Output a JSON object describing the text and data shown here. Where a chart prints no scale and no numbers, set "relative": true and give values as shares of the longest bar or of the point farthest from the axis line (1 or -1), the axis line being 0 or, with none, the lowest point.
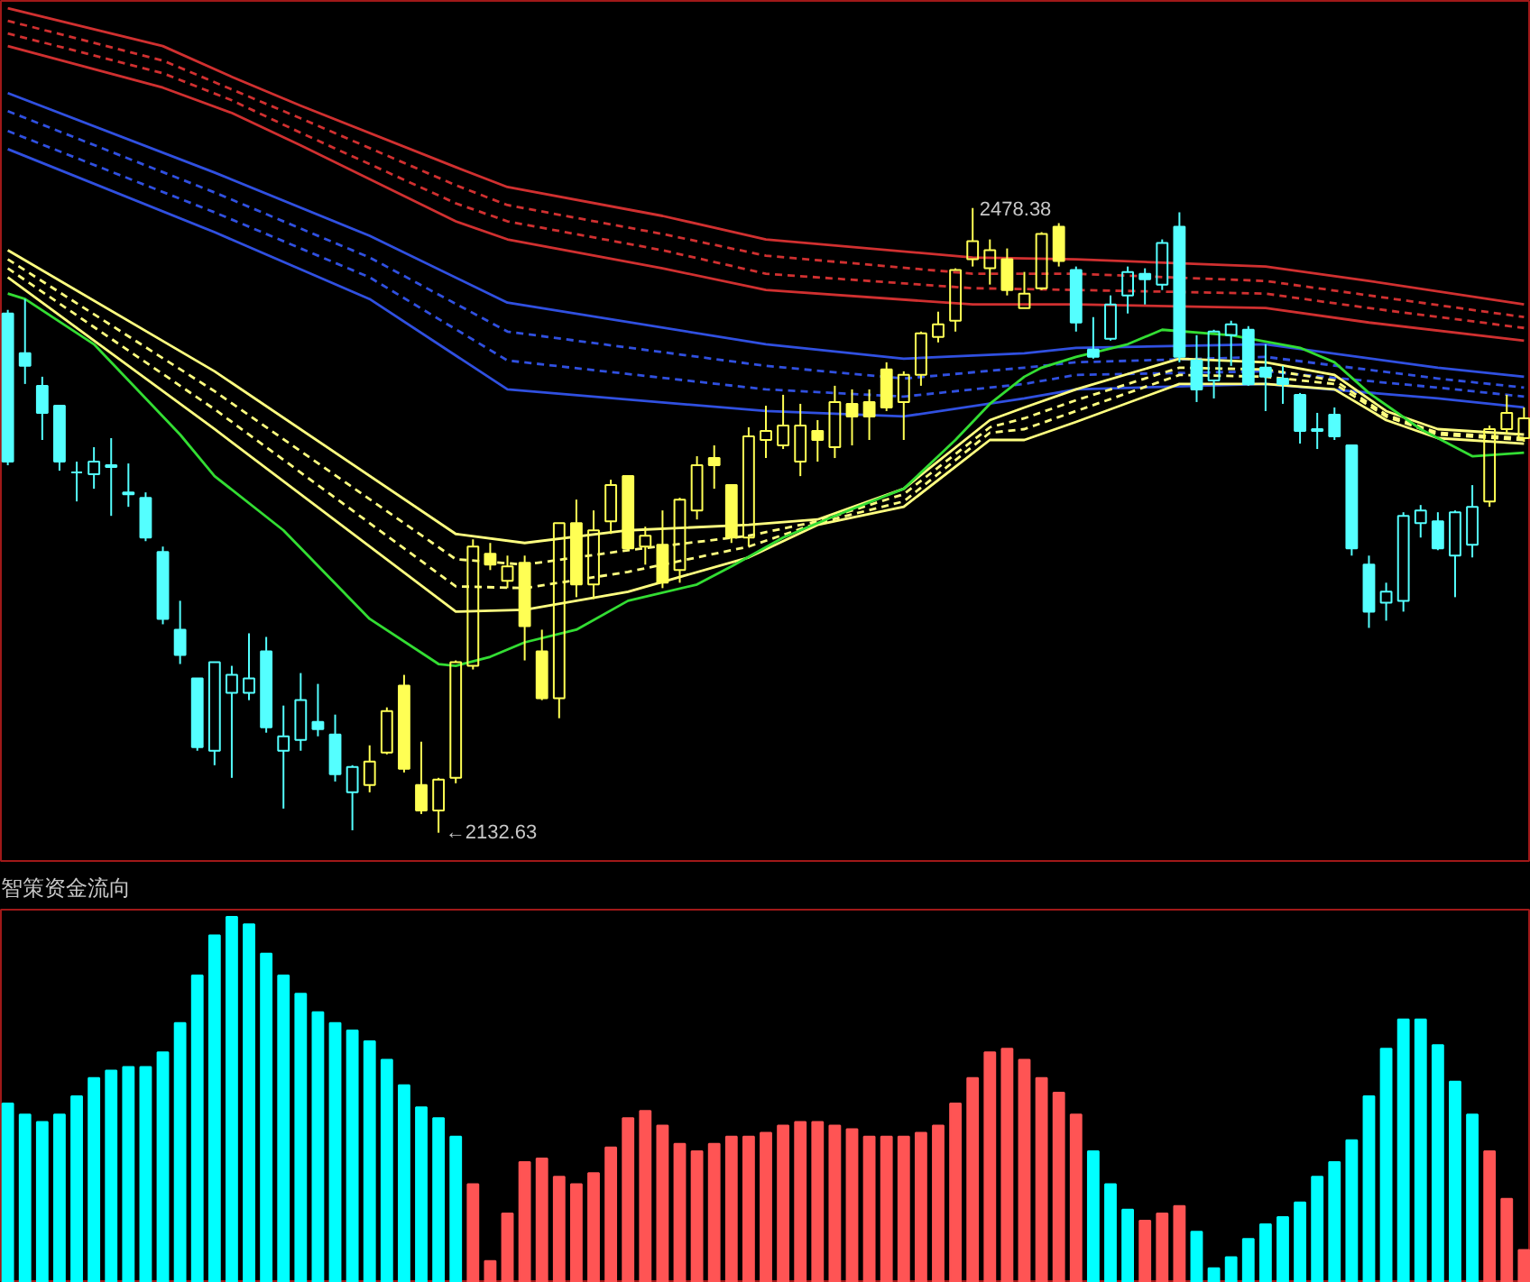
{
  "chart_data": [
    {
      "type": "candlestick",
      "categories": [
        null,
        null,
        null,
        null,
        null,
        null,
        null,
        null,
        null,
        null,
        null,
        null,
        null,
        null,
        null,
        null,
        null,
        null,
        null,
        null,
        null,
        null,
        null,
        null,
        null,
        null,
        null,
        null,
        null,
        null,
        null,
        null,
        null,
        null,
        null,
        null,
        null,
        null,
        null,
        null,
        null,
        null,
        null,
        null,
        null,
        null,
        null,
        null,
        null,
        null,
        null,
        null,
        null,
        null,
        null,
        null,
        null,
        null,
        null,
        null,
        null,
        null,
        null,
        null,
        null,
        null,
        null,
        null,
        null,
        null,
        null,
        null,
        null,
        null,
        null,
        null,
        null,
        null,
        null,
        null,
        null,
        null,
        null,
        null,
        null,
        null,
        null,
        null,
        null
      ],
      "ohlc": [
        [
          2420,
          2422,
          2336,
          2338
        ],
        [
          2398,
          2428,
          2381,
          2391
        ],
        [
          2380,
          2385,
          2350,
          2365
        ],
        [
          2369,
          2369,
          2333,
          2338
        ],
        [
          2332,
          2338,
          2316,
          2332
        ],
        [
          2331,
          2346,
          2323,
          2338
        ],
        [
          2336,
          2351,
          2308,
          2335
        ],
        [
          2321,
          2337,
          2313,
          2320
        ],
        [
          2318,
          2321,
          2294,
          2296
        ],
        [
          2288,
          2291,
          2248,
          2251
        ],
        [
          2245,
          2261,
          2226,
          2231
        ],
        [
          2218,
          2218,
          2178,
          2180
        ],
        [
          2178,
          2227,
          2170,
          2227
        ],
        [
          2210,
          2225,
          2163,
          2220
        ],
        [
          2210,
          2243,
          2206,
          2218
        ],
        [
          2233,
          2241,
          2188,
          2191
        ],
        [
          2178,
          2203,
          2146,
          2186
        ],
        [
          2184,
          2221,
          2178,
          2206
        ],
        [
          2194,
          2215,
          2186,
          2190
        ],
        [
          2187,
          2198,
          2161,
          2165
        ],
        [
          2155,
          2170,
          2134,
          2169
        ],
        [
          2159,
          2181,
          2155,
          2172
        ],
        [
          2177,
          2202,
          2176,
          2200
        ],
        [
          2214,
          2220,
          2166,
          2168
        ],
        [
          2159,
          2183,
          2143,
          2145
        ],
        [
          2145,
          2163,
          2132.63,
          2162
        ],
        [
          2163,
          2228,
          2160,
          2227
        ],
        [
          2225,
          2295,
          2223,
          2291
        ],
        [
          2287,
          2293,
          2278,
          2281
        ],
        [
          2272,
          2286,
          2268,
          2280
        ],
        [
          2282,
          2286,
          2228,
          2247
        ],
        [
          2233,
          2245,
          2206,
          2207
        ],
        [
          2207,
          2304,
          2196,
          2304
        ],
        [
          2304,
          2317,
          2263,
          2270
        ],
        [
          2270,
          2311,
          2262,
          2300
        ],
        [
          2305,
          2328,
          2298,
          2325
        ],
        [
          2330,
          2330,
          2289,
          2290
        ],
        [
          2291,
          2302,
          2281,
          2297
        ],
        [
          2292,
          2311,
          2268,
          2271
        ],
        [
          2278,
          2318,
          2271,
          2317
        ],
        [
          2311,
          2341,
          2306,
          2336
        ],
        [
          2340,
          2347,
          2323,
          2336
        ],
        [
          2325,
          2325,
          2293,
          2296
        ],
        [
          2296,
          2357,
          2291,
          2352
        ],
        [
          2350,
          2369,
          2340,
          2355
        ],
        [
          2347,
          2375,
          2345,
          2358
        ],
        [
          2338,
          2370,
          2330,
          2358
        ],
        [
          2355,
          2361,
          2338,
          2350
        ],
        [
          2346,
          2380,
          2340,
          2371
        ],
        [
          2370,
          2378,
          2347,
          2363
        ],
        [
          2371,
          2378,
          2350,
          2363
        ],
        [
          2389,
          2393,
          2366,
          2368
        ],
        [
          2371,
          2388,
          2350,
          2386
        ],
        [
          2386,
          2410,
          2380,
          2409
        ],
        [
          2407,
          2421,
          2404,
          2414
        ],
        [
          2416,
          2445,
          2410,
          2444
        ],
        [
          2450,
          2478.38,
          2446,
          2460
        ],
        [
          2445,
          2461,
          2436,
          2455
        ],
        [
          2450,
          2456,
          2430,
          2433
        ],
        [
          2423,
          2443,
          2423,
          2431
        ],
        [
          2434,
          2465,
          2433,
          2464
        ],
        [
          2468,
          2470,
          2446,
          2449
        ],
        [
          2444,
          2446,
          2410,
          2415
        ],
        [
          2400,
          2418,
          2395,
          2396
        ],
        [
          2406,
          2430,
          2405,
          2425
        ],
        [
          2430,
          2446,
          2420,
          2443
        ],
        [
          2442,
          2445,
          2425,
          2439
        ],
        [
          2436,
          2461,
          2433,
          2459
        ],
        [
          2468,
          2476,
          2393,
          2396
        ],
        [
          2394,
          2408,
          2371,
          2378
        ],
        [
          2383,
          2411,
          2373,
          2410
        ],
        [
          2408,
          2416,
          2391,
          2414
        ],
        [
          2411,
          2413,
          2380,
          2381
        ],
        [
          2390,
          2403,
          2366,
          2385
        ],
        [
          2384,
          2391,
          2370,
          2381
        ],
        [
          2375,
          2376,
          2348,
          2355
        ],
        [
          2356,
          2365,
          2345,
          2355
        ],
        [
          2364,
          2368,
          2350,
          2352
        ],
        [
          2347,
          2347,
          2286,
          2290
        ],
        [
          2281,
          2286,
          2246,
          2255
        ],
        [
          2260,
          2271,
          2250,
          2266
        ],
        [
          2261,
          2310,
          2255,
          2308
        ],
        [
          2304,
          2314,
          2296,
          2311
        ],
        [
          2305,
          2310,
          2289,
          2290
        ],
        [
          2286,
          2311,
          2263,
          2310
        ],
        [
          2292,
          2325,
          2285,
          2313
        ],
        [
          2316,
          2358,
          2313,
          2356
        ],
        [
          2356,
          2375,
          2353,
          2365
        ],
        [
          2351,
          2368,
          2349,
          2362
        ]
      ],
      "colors": [
        "#54ffff",
        "#54ffff",
        "#54ffff",
        "#54ffff",
        "#54ffff",
        "#54ffff",
        "#54ffff",
        "#54ffff",
        "#54ffff",
        "#54ffff",
        "#54ffff",
        "#54ffff",
        "#54ffff",
        "#54ffff",
        "#54ffff",
        "#54ffff",
        "#54ffff",
        "#54ffff",
        "#54ffff",
        "#54ffff",
        "#54ffff",
        "#ffff54",
        "#ffff54",
        "#ffff54",
        "#ffff54",
        "#ffff54",
        "#ffff54",
        "#ffff54",
        "#ffff54",
        "#ffff54",
        "#ffff54",
        "#ffff54",
        "#ffff54",
        "#ffff54",
        "#ffff54",
        "#ffff54",
        "#ffff54",
        "#ffff54",
        "#ffff54",
        "#ffff54",
        "#ffff54",
        "#ffff54",
        "#ffff54",
        "#ffff54",
        "#ffff54",
        "#ffff54",
        "#ffff54",
        "#ffff54",
        "#ffff54",
        "#ffff54",
        "#ffff54",
        "#ffff54",
        "#ffff54",
        "#ffff54",
        "#ffff54",
        "#ffff54",
        "#ffff54",
        "#ffff54",
        "#ffff54",
        "#ffff54",
        "#ffff54",
        "#ffff54",
        "#54ffff",
        "#54ffff",
        "#54ffff",
        "#54ffff",
        "#54ffff",
        "#54ffff",
        "#54ffff",
        "#54ffff",
        "#54ffff",
        "#54ffff",
        "#54ffff",
        "#54ffff",
        "#54ffff",
        "#54ffff",
        "#54ffff",
        "#54ffff",
        "#54ffff",
        "#54ffff",
        "#54ffff",
        "#54ffff",
        "#54ffff",
        "#54ffff",
        "#54ffff",
        "#54ffff",
        "#ffff54",
        "#ffff54",
        "#ffff54"
      ],
      "series": [
        {
          "type": "line",
          "color": "#d03030",
          "line_style": "solid",
          "values": [
            2589,
            null,
            null,
            null,
            null,
            null,
            null,
            null,
            null,
            2568,
            null,
            null,
            null,
            2551,
            null,
            null,
            null,
            2535,
            null,
            null,
            null,
            null,
            null,
            null,
            null,
            null,
            2501,
            null,
            null,
            2490,
            null,
            null,
            null,
            null,
            null,
            null,
            null,
            null,
            2474,
            null,
            null,
            null,
            null,
            null,
            2461,
            null,
            null,
            null,
            null,
            null,
            null,
            null,
            null,
            null,
            null,
            null,
            2451,
            null,
            null,
            null,
            null,
            null,
            2450,
            null,
            null,
            null,
            null,
            null,
            null,
            null,
            null,
            null,
            null,
            2446,
            null,
            null,
            null,
            null,
            null,
            2438,
            null,
            null,
            null,
            null,
            null,
            null,
            null,
            null,
            2425
          ]
        },
        {
          "type": "line",
          "color": "#d03030",
          "line_style": "dashed",
          "values": [
            2582,
            null,
            null,
            null,
            null,
            null,
            null,
            null,
            null,
            2560,
            null,
            null,
            null,
            2544,
            null,
            null,
            null,
            2528,
            null,
            null,
            null,
            null,
            null,
            null,
            null,
            null,
            2491,
            null,
            null,
            2480,
            null,
            null,
            null,
            null,
            null,
            null,
            null,
            null,
            2464,
            null,
            null,
            null,
            null,
            null,
            2452,
            null,
            null,
            null,
            null,
            null,
            null,
            null,
            null,
            null,
            null,
            null,
            2442,
            null,
            null,
            null,
            null,
            null,
            2442,
            null,
            null,
            null,
            null,
            null,
            null,
            null,
            null,
            null,
            null,
            2438,
            null,
            null,
            null,
            null,
            null,
            2430,
            null,
            null,
            null,
            null,
            null,
            null,
            null,
            null,
            2418
          ]
        },
        {
          "type": "line",
          "color": "#d03030",
          "line_style": "dashed",
          "values": [
            2575,
            null,
            null,
            null,
            null,
            null,
            null,
            null,
            null,
            2553,
            null,
            null,
            null,
            2538,
            null,
            null,
            null,
            2520,
            null,
            null,
            null,
            null,
            null,
            null,
            null,
            null,
            2481,
            null,
            null,
            2471,
            null,
            null,
            null,
            null,
            null,
            null,
            null,
            null,
            2455,
            null,
            null,
            null,
            null,
            null,
            2442,
            null,
            null,
            null,
            null,
            null,
            null,
            null,
            null,
            null,
            null,
            null,
            2434,
            null,
            null,
            null,
            null,
            null,
            2433,
            null,
            null,
            null,
            null,
            null,
            null,
            null,
            null,
            null,
            null,
            2431,
            null,
            null,
            null,
            null,
            null,
            2423,
            null,
            null,
            null,
            null,
            null,
            null,
            null,
            null,
            2412
          ]
        },
        {
          "type": "line",
          "color": "#d03030",
          "line_style": "solid",
          "values": [
            2568,
            null,
            null,
            null,
            null,
            null,
            null,
            null,
            null,
            2545,
            null,
            null,
            null,
            2531,
            null,
            null,
            null,
            2513,
            null,
            null,
            null,
            null,
            null,
            null,
            null,
            null,
            2471,
            null,
            null,
            2461,
            null,
            null,
            null,
            null,
            null,
            null,
            null,
            null,
            2445,
            null,
            null,
            null,
            null,
            null,
            2433,
            null,
            null,
            null,
            null,
            null,
            null,
            null,
            null,
            null,
            null,
            null,
            2425,
            null,
            null,
            null,
            null,
            null,
            2425,
            null,
            null,
            null,
            null,
            null,
            null,
            null,
            null,
            null,
            null,
            2423,
            null,
            null,
            null,
            null,
            null,
            2415,
            null,
            null,
            null,
            null,
            null,
            null,
            null,
            null,
            2405
          ]
        },
        {
          "type": "line",
          "color": "#3050e0",
          "line_style": "solid",
          "values": [
            2542,
            null,
            null,
            null,
            null,
            null,
            null,
            null,
            null,
            null,
            null,
            null,
            2498,
            null,
            null,
            null,
            null,
            null,
            null,
            null,
            null,
            2463,
            null,
            null,
            null,
            null,
            null,
            null,
            null,
            2426,
            null,
            null,
            null,
            null,
            null,
            null,
            null,
            null,
            null,
            null,
            null,
            null,
            null,
            null,
            2403,
            null,
            null,
            null,
            null,
            null,
            null,
            null,
            2395,
            null,
            null,
            null,
            null,
            null,
            null,
            2398,
            null,
            null,
            2401,
            null,
            null,
            null,
            null,
            null,
            null,
            null,
            null,
            null,
            null,
            2403,
            null,
            null,
            null,
            null,
            null,
            null,
            null,
            null,
            null,
            2390,
            null,
            null,
            null,
            null,
            2385
          ]
        },
        {
          "type": "line",
          "color": "#3050e0",
          "line_style": "dashed",
          "values": [
            2532,
            null,
            null,
            null,
            null,
            null,
            null,
            null,
            null,
            null,
            null,
            null,
            2487,
            null,
            null,
            null,
            null,
            null,
            null,
            null,
            null,
            2451,
            null,
            null,
            null,
            null,
            null,
            null,
            null,
            2410,
            null,
            null,
            null,
            null,
            null,
            null,
            null,
            null,
            null,
            null,
            null,
            null,
            null,
            null,
            2391,
            null,
            null,
            null,
            null,
            null,
            null,
            null,
            2384,
            null,
            null,
            null,
            null,
            null,
            null,
            2390,
            null,
            null,
            2393,
            null,
            null,
            null,
            null,
            null,
            null,
            null,
            null,
            null,
            null,
            2396,
            null,
            null,
            null,
            null,
            null,
            null,
            null,
            null,
            null,
            2384,
            null,
            null,
            null,
            null,
            2379
          ]
        },
        {
          "type": "line",
          "color": "#3050e0",
          "line_style": "dashed",
          "values": [
            2521,
            null,
            null,
            null,
            null,
            null,
            null,
            null,
            null,
            null,
            null,
            null,
            2476,
            null,
            null,
            null,
            null,
            null,
            null,
            null,
            null,
            2440,
            null,
            null,
            null,
            null,
            null,
            null,
            null,
            2394,
            null,
            null,
            null,
            null,
            null,
            null,
            null,
            null,
            null,
            null,
            null,
            null,
            null,
            null,
            2378,
            null,
            null,
            null,
            null,
            null,
            null,
            null,
            2374,
            null,
            null,
            null,
            null,
            null,
            null,
            2381,
            null,
            null,
            2386,
            null,
            null,
            null,
            null,
            null,
            null,
            null,
            null,
            null,
            null,
            2388,
            null,
            null,
            null,
            null,
            null,
            null,
            null,
            null,
            null,
            2379,
            null,
            null,
            null,
            null,
            2374
          ]
        },
        {
          "type": "line",
          "color": "#3050e0",
          "line_style": "solid",
          "values": [
            2511,
            null,
            null,
            null,
            null,
            null,
            null,
            null,
            null,
            null,
            null,
            null,
            2465,
            null,
            null,
            null,
            null,
            null,
            null,
            null,
            null,
            2428,
            null,
            null,
            null,
            null,
            null,
            null,
            null,
            2378,
            null,
            null,
            null,
            null,
            null,
            null,
            null,
            null,
            null,
            null,
            null,
            null,
            null,
            null,
            2366,
            null,
            null,
            null,
            null,
            null,
            null,
            null,
            2363,
            null,
            null,
            null,
            null,
            null,
            null,
            2373,
            null,
            null,
            2378,
            null,
            null,
            null,
            null,
            null,
            null,
            null,
            null,
            null,
            null,
            2381,
            null,
            null,
            null,
            null,
            null,
            null,
            null,
            null,
            null,
            2373,
            null,
            null,
            null,
            null,
            2368
          ]
        },
        {
          "type": "line",
          "color": "#ffff80",
          "line_style": "solid",
          "values": [
            2455,
            null,
            null,
            null,
            null,
            null,
            null,
            null,
            null,
            null,
            null,
            null,
            2388,
            null,
            null,
            null,
            null,
            null,
            null,
            null,
            null,
            null,
            null,
            null,
            null,
            null,
            2298,
            null,
            null,
            null,
            2293,
            null,
            null,
            null,
            null,
            null,
            2300,
            null,
            null,
            null,
            null,
            null,
            null,
            2303,
            null,
            null,
            null,
            2306,
            null,
            null,
            null,
            null,
            2323,
            null,
            null,
            null,
            null,
            2361,
            null,
            2368,
            null,
            null,
            2378,
            null,
            null,
            null,
            null,
            null,
            2395,
            null,
            null,
            null,
            null,
            2393,
            null,
            null,
            null,
            2386,
            null,
            null,
            2366,
            null,
            null,
            2356,
            null,
            null,
            null,
            null,
            2353
          ]
        },
        {
          "type": "line",
          "color": "#ffff80",
          "line_style": "dashed",
          "values": [
            2450,
            null,
            null,
            null,
            null,
            null,
            null,
            null,
            null,
            null,
            null,
            null,
            2377,
            null,
            null,
            null,
            null,
            null,
            null,
            null,
            null,
            null,
            null,
            null,
            null,
            null,
            2284,
            null,
            null,
            null,
            2281,
            null,
            null,
            null,
            null,
            null,
            2289,
            null,
            null,
            null,
            null,
            null,
            null,
            2297,
            null,
            null,
            null,
            2305,
            null,
            null,
            null,
            null,
            2320,
            null,
            null,
            null,
            null,
            2357,
            null,
            2362,
            null,
            null,
            2372,
            null,
            null,
            null,
            null,
            null,
            2390,
            null,
            null,
            null,
            null,
            2389,
            null,
            null,
            null,
            2383,
            null,
            null,
            2364,
            null,
            null,
            2354,
            null,
            null,
            null,
            null,
            2351
          ]
        },
        {
          "type": "line",
          "color": "#ffff80",
          "line_style": "dashed",
          "values": [
            2445,
            null,
            null,
            null,
            null,
            null,
            null,
            null,
            null,
            null,
            null,
            null,
            2367,
            null,
            null,
            null,
            null,
            null,
            null,
            null,
            null,
            null,
            null,
            null,
            null,
            null,
            2269,
            null,
            null,
            null,
            2268,
            null,
            null,
            null,
            null,
            null,
            2277,
            null,
            null,
            null,
            null,
            null,
            null,
            2291,
            null,
            null,
            null,
            2304,
            null,
            null,
            null,
            null,
            2316,
            null,
            null,
            null,
            null,
            2354,
            null,
            2356,
            null,
            null,
            2366,
            null,
            null,
            null,
            null,
            null,
            2386,
            null,
            null,
            null,
            null,
            2385,
            null,
            null,
            null,
            2381,
            null,
            null,
            2363,
            null,
            null,
            2353,
            null,
            null,
            null,
            null,
            2350
          ]
        },
        {
          "type": "line",
          "color": "#ffff80",
          "line_style": "solid",
          "values": [
            2440,
            null,
            null,
            null,
            null,
            null,
            null,
            null,
            null,
            null,
            null,
            null,
            2356,
            null,
            null,
            null,
            null,
            null,
            null,
            null,
            null,
            null,
            null,
            null,
            null,
            null,
            2255,
            null,
            null,
            null,
            2256,
            null,
            null,
            null,
            null,
            null,
            2266,
            null,
            null,
            null,
            null,
            null,
            null,
            2285,
            null,
            null,
            null,
            2303,
            null,
            null,
            null,
            null,
            2313,
            null,
            null,
            null,
            null,
            2350,
            null,
            2350,
            null,
            null,
            2360,
            null,
            null,
            null,
            null,
            null,
            2381,
            null,
            null,
            null,
            null,
            2381,
            null,
            null,
            null,
            2378,
            null,
            null,
            2361,
            null,
            null,
            2351,
            null,
            null,
            null,
            null,
            2348
          ]
        },
        {
          "type": "line",
          "color": "#33dd33",
          "line_style": "solid",
          "values": [
            2431,
            2428,
            null,
            null,
            null,
            2403,
            null,
            null,
            null,
            null,
            2353,
            null,
            2330,
            null,
            null,
            null,
            2300,
            null,
            null,
            null,
            null,
            2251,
            null,
            null,
            null,
            2226,
            2225,
            null,
            2230,
            null,
            2238,
            null,
            null,
            2245,
            null,
            null,
            2261,
            null,
            null,
            null,
            2270,
            null,
            2280,
            null,
            null,
            2296,
            null,
            null,
            2308,
            null,
            null,
            null,
            2323,
            null,
            null,
            2350,
            null,
            2370,
            null,
            2385,
            2390,
            null,
            2396,
            null,
            null,
            2403,
            null,
            2411,
            null,
            null,
            null,
            2408,
            null,
            null,
            null,
            2401,
            null,
            2393,
            null,
            2376,
            null,
            null,
            2356,
            null,
            null,
            2341,
            null,
            null,
            2343
          ]
        }
      ],
      "annotations": [
        "2478.38",
        "←2132.63"
      ],
      "ylim": [
        2116,
        2593
      ],
      "tick_labels": false
    },
    {
      "type": "bar",
      "title": "智策资金流向",
      "relative": true,
      "tick_labels": false,
      "categories": [
        null,
        null,
        null,
        null,
        null,
        null,
        null,
        null,
        null,
        null,
        null,
        null,
        null,
        null,
        null,
        null,
        null,
        null,
        null,
        null,
        null,
        null,
        null,
        null,
        null,
        null,
        null,
        null,
        null,
        null,
        null,
        null,
        null,
        null,
        null,
        null,
        null,
        null,
        null,
        null,
        null,
        null,
        null,
        null,
        null,
        null,
        null,
        null,
        null,
        null,
        null,
        null,
        null,
        null,
        null,
        null,
        null,
        null,
        null,
        null,
        null,
        null,
        null,
        null,
        null,
        null,
        null,
        null,
        null,
        null,
        null,
        null,
        null,
        null,
        null,
        null,
        null,
        null,
        null,
        null,
        null,
        null,
        null,
        null,
        null,
        null,
        null,
        null,
        null
      ],
      "values": [
        0.49,
        0.46,
        0.44,
        0.46,
        0.51,
        0.56,
        0.58,
        0.59,
        0.59,
        0.63,
        0.71,
        0.84,
        0.95,
        1,
        0.98,
        0.9,
        0.84,
        0.79,
        0.74,
        0.71,
        0.69,
        0.66,
        0.61,
        0.54,
        0.48,
        0.45,
        0.4,
        0.27,
        0.06,
        0.19,
        0.33,
        0.34,
        0.29,
        0.27,
        0.3,
        0.37,
        0.45,
        0.47,
        0.43,
        0.38,
        0.36,
        0.38,
        0.4,
        0.4,
        0.41,
        0.43,
        0.44,
        0.44,
        0.43,
        0.42,
        0.4,
        0.4,
        0.4,
        0.41,
        0.43,
        0.49,
        0.56,
        0.63,
        0.64,
        0.61,
        0.56,
        0.52,
        0.46,
        0.36,
        0.27,
        0.2,
        0.17,
        0.19,
        0.21,
        0.14,
        0.04,
        0.07,
        0.12,
        0.16,
        0.18,
        0.22,
        0.29,
        0.33,
        0.39,
        0.51,
        0.64,
        0.72,
        0.72,
        0.65,
        0.55,
        0.46,
        0.36,
        0.23,
        0.09
      ],
      "colors": [
        "#00ffff",
        "#00ffff",
        "#00ffff",
        "#00ffff",
        "#00ffff",
        "#00ffff",
        "#00ffff",
        "#00ffff",
        "#00ffff",
        "#00ffff",
        "#00ffff",
        "#00ffff",
        "#00ffff",
        "#00ffff",
        "#00ffff",
        "#00ffff",
        "#00ffff",
        "#00ffff",
        "#00ffff",
        "#00ffff",
        "#00ffff",
        "#00ffff",
        "#00ffff",
        "#00ffff",
        "#00ffff",
        "#00ffff",
        "#00ffff",
        "#ff5454",
        "#ff5454",
        "#ff5454",
        "#ff5454",
        "#ff5454",
        "#ff5454",
        "#ff5454",
        "#ff5454",
        "#ff5454",
        "#ff5454",
        "#ff5454",
        "#ff5454",
        "#ff5454",
        "#ff5454",
        "#ff5454",
        "#ff5454",
        "#ff5454",
        "#ff5454",
        "#ff5454",
        "#ff5454",
        "#ff5454",
        "#ff5454",
        "#ff5454",
        "#ff5454",
        "#ff5454",
        "#ff5454",
        "#ff5454",
        "#ff5454",
        "#ff5454",
        "#ff5454",
        "#ff5454",
        "#ff5454",
        "#ff5454",
        "#ff5454",
        "#ff5454",
        "#ff5454",
        "#00ffff",
        "#00ffff",
        "#00ffff",
        "#ff5454",
        "#ff5454",
        "#ff5454",
        "#00ffff",
        "#00ffff",
        "#00ffff",
        "#00ffff",
        "#00ffff",
        "#00ffff",
        "#00ffff",
        "#00ffff",
        "#00ffff",
        "#00ffff",
        "#00ffff",
        "#00ffff",
        "#00ffff",
        "#00ffff",
        "#00ffff",
        "#00ffff",
        "#00ffff",
        "#ff5454",
        "#ff5454",
        "#ff5454"
      ]
    }
  ]
}
